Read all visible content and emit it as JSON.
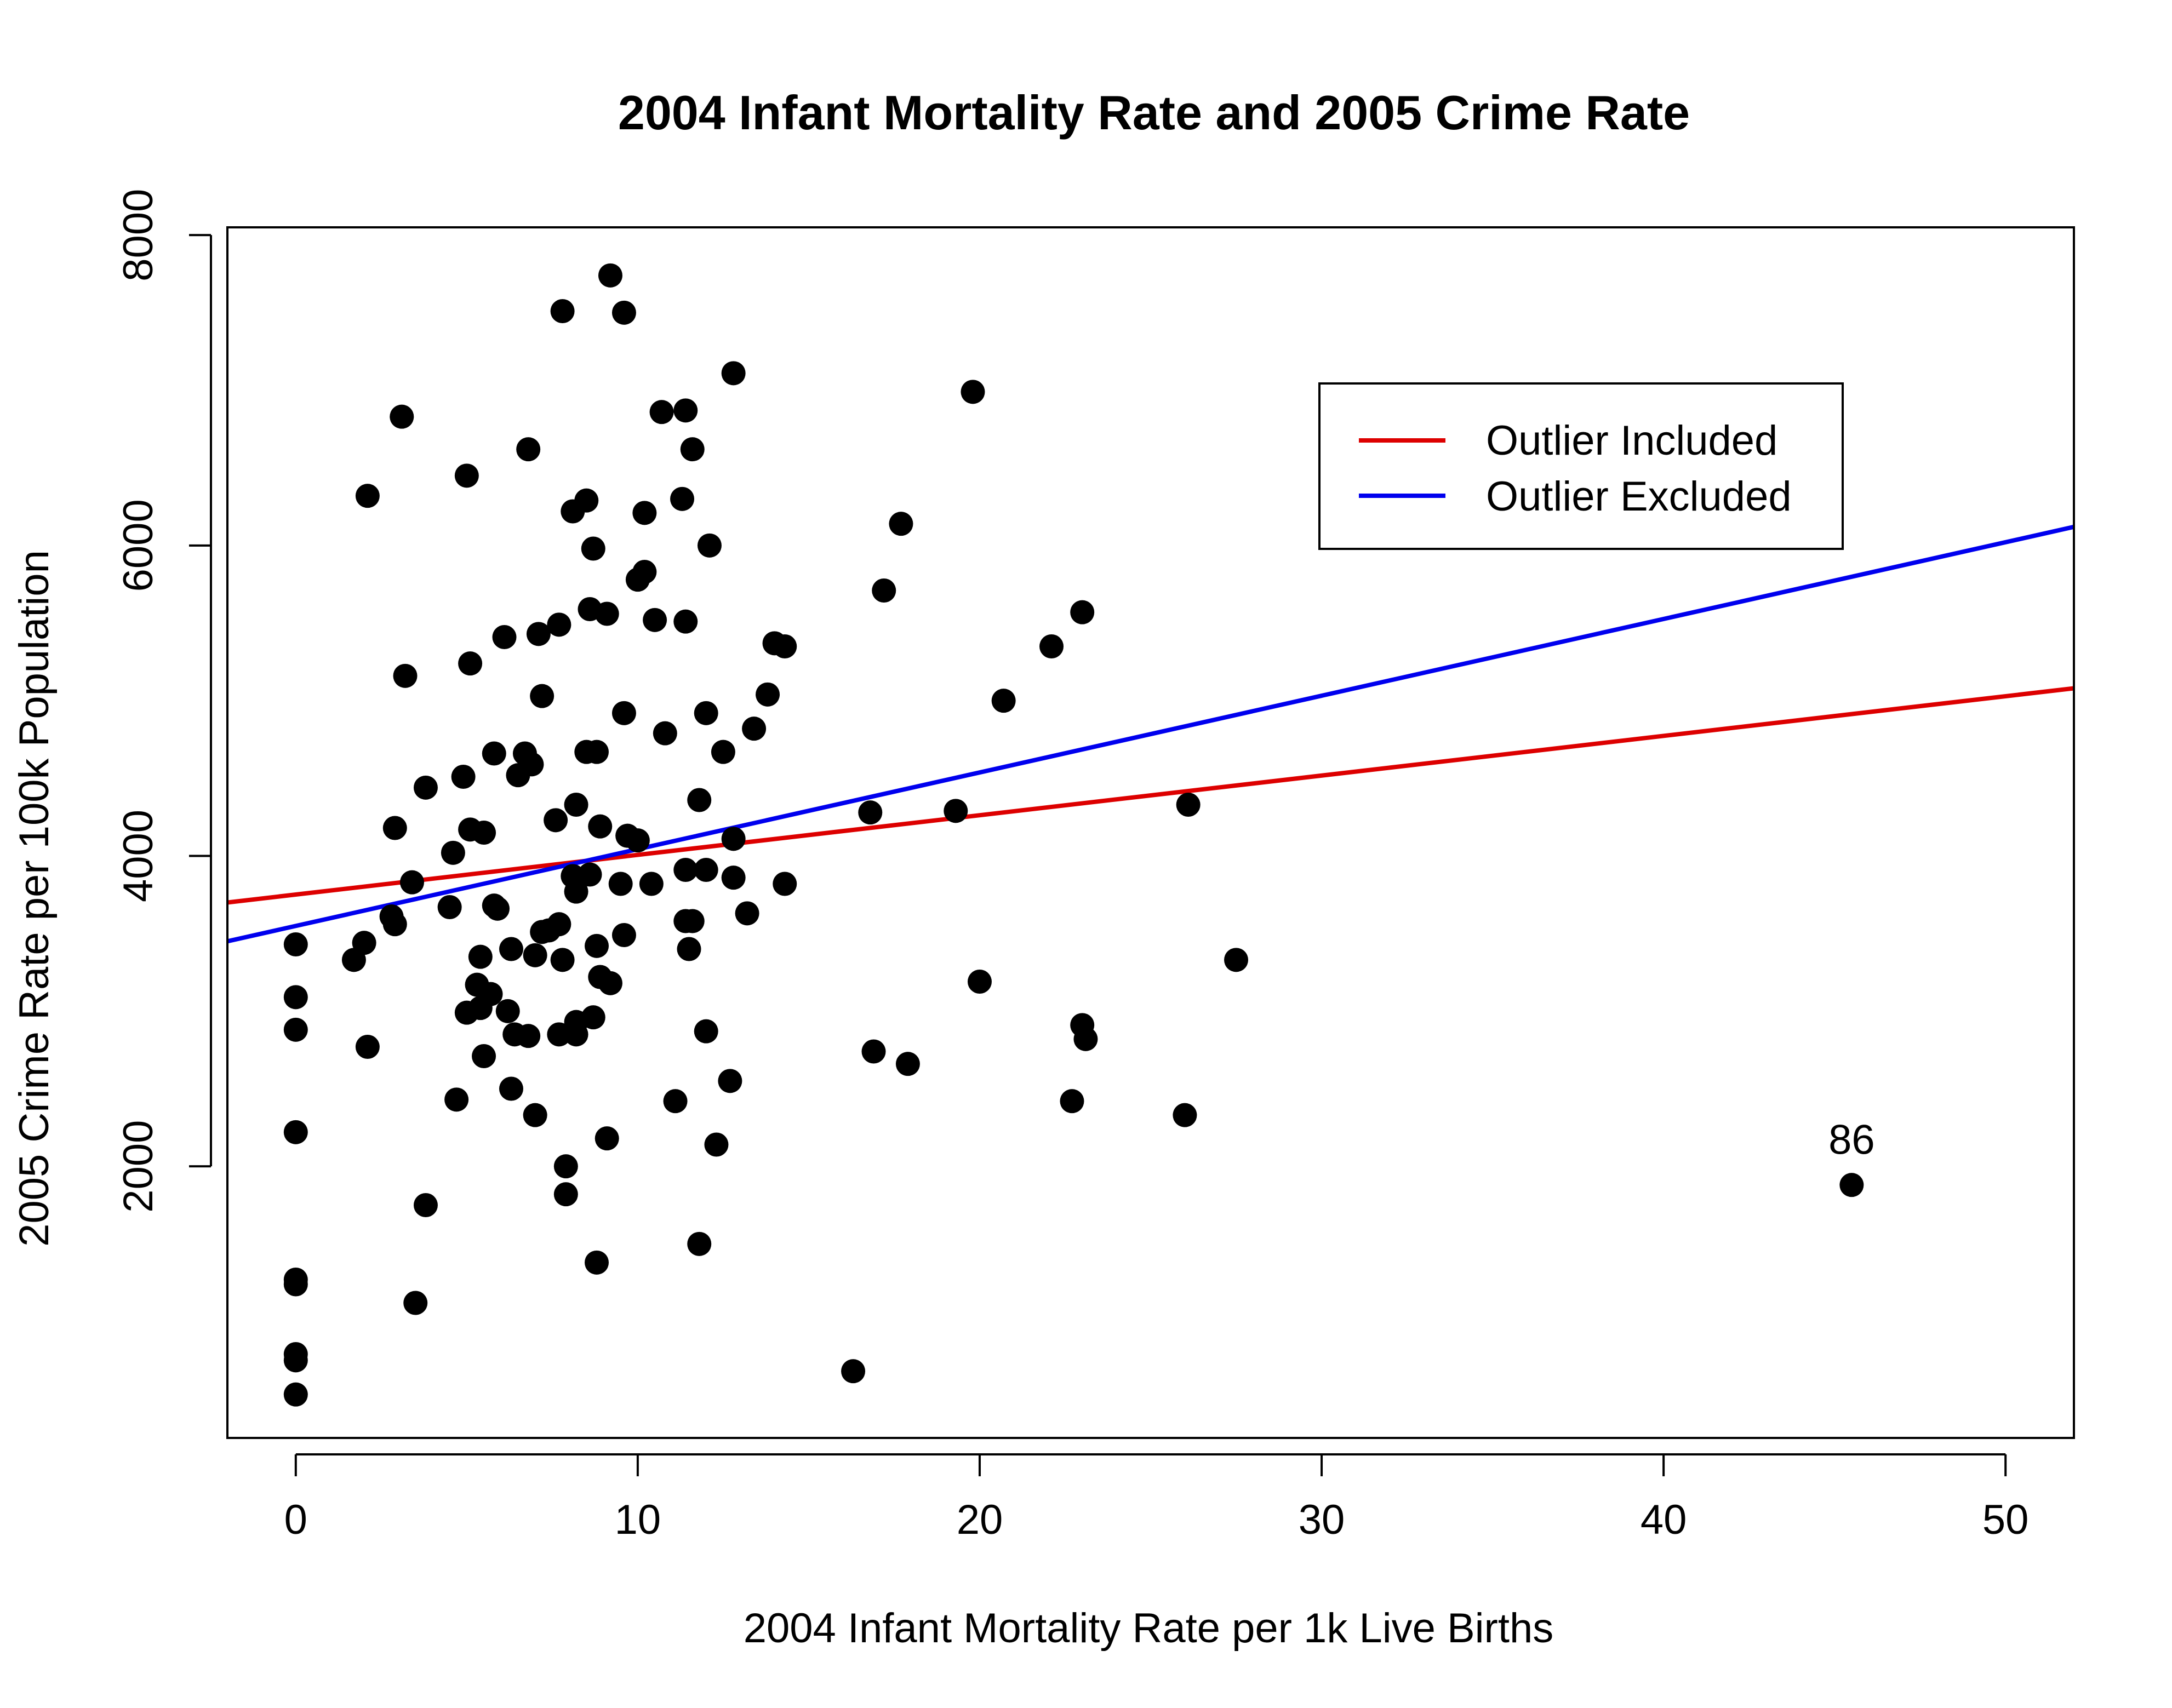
{
  "chart_data": {
    "type": "scatter",
    "title": "2004 Infant Mortality Rate and 2005 Crime Rate",
    "xlabel": "2004 Infant Mortality Rate per 1k Live Births",
    "ylabel": "2005 Crime Rate per 100k Population",
    "xlim": [
      -2,
      52
    ],
    "ylim": [
      250,
      8050
    ],
    "x_ticks": [
      0,
      10,
      20,
      30,
      40,
      50
    ],
    "y_ticks": [
      2000,
      4000,
      6000,
      8000
    ],
    "grid": false,
    "legend": {
      "placement": "top-right",
      "entries": [
        {
          "label": "Outlier Included",
          "color": "#dd0000"
        },
        {
          "label": "Outlier Excluded",
          "color": "#0000ee"
        }
      ]
    },
    "lines": [
      {
        "name": "Outlier Included",
        "color": "#dd0000",
        "x": [
          -2,
          52
        ],
        "y": [
          3700,
          5080
        ]
      },
      {
        "name": "Outlier Excluded",
        "color": "#0000ee",
        "x": [
          -2,
          52
        ],
        "y": [
          3450,
          6120
        ]
      }
    ],
    "annotations": [
      {
        "text": "86",
        "x": 45.5,
        "y": 2080
      }
    ],
    "point_color": "#000000",
    "points": [
      {
        "x": 0,
        "y": 3430
      },
      {
        "x": 0,
        "y": 3090
      },
      {
        "x": 0,
        "y": 2880
      },
      {
        "x": 0,
        "y": 2220
      },
      {
        "x": 0,
        "y": 1270
      },
      {
        "x": 0,
        "y": 1240
      },
      {
        "x": 0,
        "y": 790
      },
      {
        "x": 0,
        "y": 750
      },
      {
        "x": 0,
        "y": 530
      },
      {
        "x": 1.7,
        "y": 3330
      },
      {
        "x": 2.0,
        "y": 3440
      },
      {
        "x": 2.1,
        "y": 2770
      },
      {
        "x": 2.1,
        "y": 6320
      },
      {
        "x": 2.8,
        "y": 3610
      },
      {
        "x": 2.9,
        "y": 3560
      },
      {
        "x": 2.9,
        "y": 4180
      },
      {
        "x": 3.1,
        "y": 6830
      },
      {
        "x": 3.2,
        "y": 5160
      },
      {
        "x": 3.4,
        "y": 3830
      },
      {
        "x": 3.5,
        "y": 1120
      },
      {
        "x": 3.8,
        "y": 4440
      },
      {
        "x": 3.8,
        "y": 1750
      },
      {
        "x": 4.5,
        "y": 3670
      },
      {
        "x": 4.6,
        "y": 4020
      },
      {
        "x": 4.7,
        "y": 2430
      },
      {
        "x": 4.9,
        "y": 4510
      },
      {
        "x": 5.0,
        "y": 6450
      },
      {
        "x": 5.0,
        "y": 2990
      },
      {
        "x": 5.1,
        "y": 5240
      },
      {
        "x": 5.1,
        "y": 4170
      },
      {
        "x": 5.3,
        "y": 3170
      },
      {
        "x": 5.4,
        "y": 3020
      },
      {
        "x": 5.4,
        "y": 3350
      },
      {
        "x": 5.5,
        "y": 4150
      },
      {
        "x": 5.5,
        "y": 2710
      },
      {
        "x": 5.7,
        "y": 3110
      },
      {
        "x": 5.8,
        "y": 4660
      },
      {
        "x": 5.8,
        "y": 3680
      },
      {
        "x": 5.9,
        "y": 3660
      },
      {
        "x": 6.1,
        "y": 5410
      },
      {
        "x": 6.2,
        "y": 3000
      },
      {
        "x": 6.3,
        "y": 3400
      },
      {
        "x": 6.3,
        "y": 2500
      },
      {
        "x": 6.4,
        "y": 2850
      },
      {
        "x": 6.5,
        "y": 4520
      },
      {
        "x": 6.7,
        "y": 4660
      },
      {
        "x": 6.8,
        "y": 6620
      },
      {
        "x": 6.8,
        "y": 2840
      },
      {
        "x": 6.9,
        "y": 4590
      },
      {
        "x": 7.0,
        "y": 3360
      },
      {
        "x": 7.0,
        "y": 2330
      },
      {
        "x": 7.1,
        "y": 5430
      },
      {
        "x": 7.2,
        "y": 5030
      },
      {
        "x": 7.2,
        "y": 3510
      },
      {
        "x": 7.4,
        "y": 3520
      },
      {
        "x": 7.6,
        "y": 4230
      },
      {
        "x": 7.7,
        "y": 5490
      },
      {
        "x": 7.7,
        "y": 3560
      },
      {
        "x": 7.7,
        "y": 2850
      },
      {
        "x": 7.8,
        "y": 3330
      },
      {
        "x": 7.8,
        "y": 7510
      },
      {
        "x": 7.9,
        "y": 2000
      },
      {
        "x": 7.9,
        "y": 1820
      },
      {
        "x": 8.1,
        "y": 6220
      },
      {
        "x": 8.1,
        "y": 3870
      },
      {
        "x": 8.2,
        "y": 4330
      },
      {
        "x": 8.2,
        "y": 3770
      },
      {
        "x": 8.2,
        "y": 2930
      },
      {
        "x": 8.2,
        "y": 2850
      },
      {
        "x": 8.5,
        "y": 6290
      },
      {
        "x": 8.5,
        "y": 4670
      },
      {
        "x": 8.6,
        "y": 5590
      },
      {
        "x": 8.6,
        "y": 3880
      },
      {
        "x": 8.7,
        "y": 5980
      },
      {
        "x": 8.7,
        "y": 2960
      },
      {
        "x": 8.8,
        "y": 4670
      },
      {
        "x": 8.8,
        "y": 3420
      },
      {
        "x": 8.8,
        "y": 1380
      },
      {
        "x": 8.9,
        "y": 4190
      },
      {
        "x": 8.9,
        "y": 3220
      },
      {
        "x": 9.1,
        "y": 5560
      },
      {
        "x": 9.1,
        "y": 2180
      },
      {
        "x": 9.2,
        "y": 7740
      },
      {
        "x": 9.2,
        "y": 3180
      },
      {
        "x": 9.5,
        "y": 3820
      },
      {
        "x": 9.6,
        "y": 7500
      },
      {
        "x": 9.6,
        "y": 4920
      },
      {
        "x": 9.6,
        "y": 3490
      },
      {
        "x": 9.7,
        "y": 4130
      },
      {
        "x": 10.0,
        "y": 5780
      },
      {
        "x": 10.0,
        "y": 4100
      },
      {
        "x": 10.2,
        "y": 6210
      },
      {
        "x": 10.2,
        "y": 5830
      },
      {
        "x": 10.4,
        "y": 3820
      },
      {
        "x": 10.5,
        "y": 5520
      },
      {
        "x": 10.7,
        "y": 6860
      },
      {
        "x": 10.8,
        "y": 4790
      },
      {
        "x": 11.1,
        "y": 2420
      },
      {
        "x": 11.3,
        "y": 6300
      },
      {
        "x": 11.4,
        "y": 6870
      },
      {
        "x": 11.4,
        "y": 5510
      },
      {
        "x": 11.4,
        "y": 3910
      },
      {
        "x": 11.4,
        "y": 3580
      },
      {
        "x": 11.5,
        "y": 3400
      },
      {
        "x": 11.6,
        "y": 6620
      },
      {
        "x": 11.6,
        "y": 3580
      },
      {
        "x": 11.8,
        "y": 4360
      },
      {
        "x": 11.8,
        "y": 1500
      },
      {
        "x": 12.0,
        "y": 4920
      },
      {
        "x": 12.0,
        "y": 3910
      },
      {
        "x": 12.0,
        "y": 2870
      },
      {
        "x": 12.1,
        "y": 6000
      },
      {
        "x": 12.3,
        "y": 2140
      },
      {
        "x": 12.5,
        "y": 4670
      },
      {
        "x": 12.7,
        "y": 2550
      },
      {
        "x": 12.8,
        "y": 7110
      },
      {
        "x": 12.8,
        "y": 4110
      },
      {
        "x": 12.8,
        "y": 3860
      },
      {
        "x": 13.2,
        "y": 3630
      },
      {
        "x": 13.4,
        "y": 4820
      },
      {
        "x": 13.8,
        "y": 5040
      },
      {
        "x": 14.0,
        "y": 5370
      },
      {
        "x": 14.3,
        "y": 5350
      },
      {
        "x": 14.3,
        "y": 3820
      },
      {
        "x": 16.3,
        "y": 680
      },
      {
        "x": 16.8,
        "y": 4280
      },
      {
        "x": 16.9,
        "y": 2740
      },
      {
        "x": 17.2,
        "y": 5710
      },
      {
        "x": 17.7,
        "y": 6140
      },
      {
        "x": 17.9,
        "y": 2660
      },
      {
        "x": 19.3,
        "y": 4290
      },
      {
        "x": 19.8,
        "y": 6990
      },
      {
        "x": 20.0,
        "y": 3190
      },
      {
        "x": 20.7,
        "y": 5000
      },
      {
        "x": 22.1,
        "y": 5350
      },
      {
        "x": 22.7,
        "y": 2420
      },
      {
        "x": 23.0,
        "y": 5570
      },
      {
        "x": 23.0,
        "y": 2910
      },
      {
        "x": 23.1,
        "y": 2820
      },
      {
        "x": 26.0,
        "y": 2330
      },
      {
        "x": 26.1,
        "y": 4330
      },
      {
        "x": 27.5,
        "y": 3330
      },
      {
        "x": 45.5,
        "y": 1880
      }
    ]
  }
}
